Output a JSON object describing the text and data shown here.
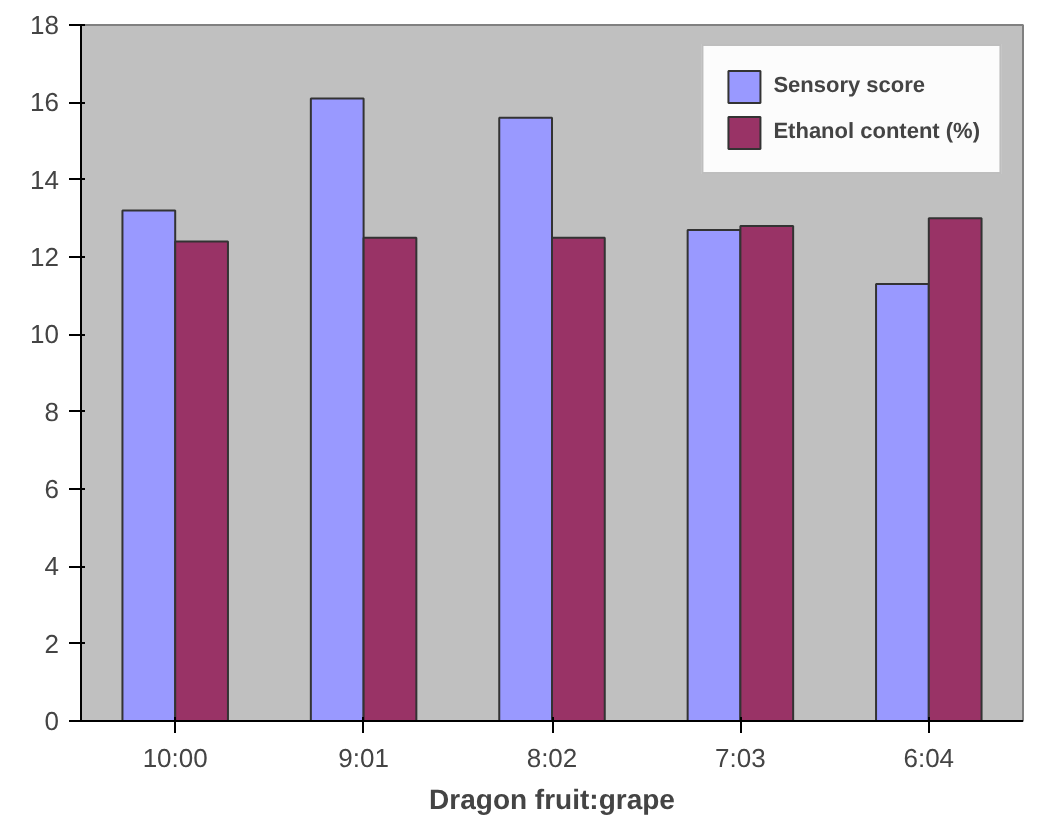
{
  "chart_data": {
    "type": "bar",
    "xlabel": "Dragon fruit:grape",
    "categories": [
      "10:00",
      "9:01",
      "8:02",
      "7:03",
      "6:04"
    ],
    "series": [
      {
        "name": "Sensory score",
        "color": "#9999ff",
        "values": [
          13.2,
          16.1,
          15.6,
          12.7,
          11.3
        ]
      },
      {
        "name": "Ethanol content (%)",
        "color": "#993366",
        "values": [
          12.4,
          12.5,
          12.5,
          12.8,
          13.0
        ]
      }
    ],
    "ylim": [
      0,
      18
    ],
    "yticks": [
      0,
      2,
      4,
      6,
      8,
      10,
      12,
      14,
      16,
      18
    ],
    "grid": false,
    "legend": "top right"
  }
}
